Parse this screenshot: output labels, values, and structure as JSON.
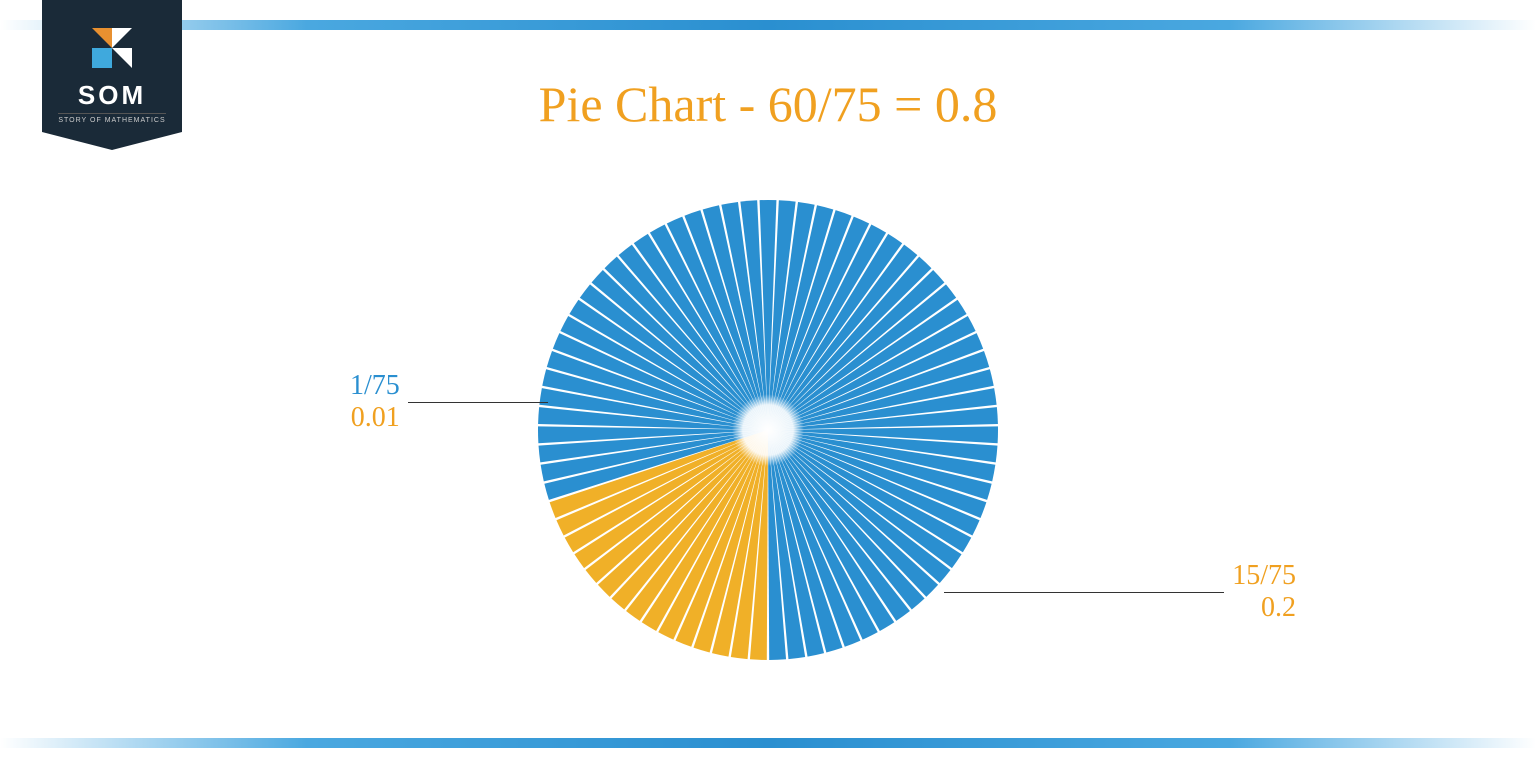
{
  "logo": {
    "text": "SOM",
    "subtext": "STORY OF MATHEMATICS",
    "badge_bg": "#1a2a38",
    "icon_colors": {
      "orange": "#e89030",
      "white": "#ffffff",
      "blue": "#3fa9dd"
    }
  },
  "title": {
    "text": "Pie Chart - 60/75 = 0.8",
    "color": "#f0a020",
    "fontsize": 50
  },
  "chart": {
    "type": "pie",
    "total_slices": 75,
    "segments": [
      {
        "name": "main",
        "slices": 60,
        "fraction": "60/75",
        "decimal": 0.8,
        "color": "#2a8fd0"
      },
      {
        "name": "minor",
        "slices": 15,
        "fraction": "15/75",
        "decimal": 0.2,
        "color": "#f0b028"
      }
    ],
    "slice_gap_color": "#ffffff",
    "slice_gap_deg": 0.6,
    "radius": 230,
    "inner_fade_radius": 36,
    "start_angle_deg": 252,
    "background_color": "#ffffff"
  },
  "labels": {
    "left": {
      "fraction": "1/75",
      "decimal": "0.01",
      "frac_color": "#2a8fd0",
      "dec_color": "#f0a020"
    },
    "right": {
      "fraction": "15/75",
      "decimal": "0.2",
      "frac_color": "#f0a020",
      "dec_color": "#f0a020"
    }
  },
  "bars": {
    "gradient_mid": "#2a8fd0",
    "gradient_edge": "#ffffff",
    "height": 10
  }
}
